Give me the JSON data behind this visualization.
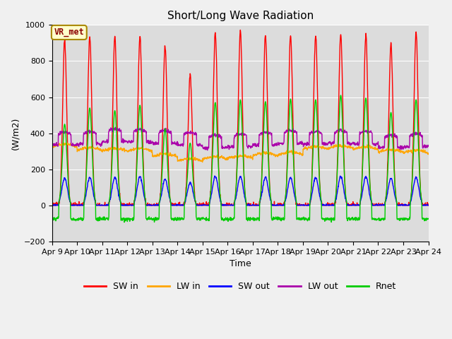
{
  "title": "Short/Long Wave Radiation",
  "ylabel": "(W/m2)",
  "xlabel": "Time",
  "ylim": [
    -200,
    1000
  ],
  "xlim": [
    0,
    15
  ],
  "annotation": "VR_met",
  "x_tick_labels": [
    "Apr 9",
    "Apr 10",
    "Apr 11",
    "Apr 12",
    "Apr 13",
    "Apr 14",
    "Apr 15",
    "Apr 16",
    "Apr 17",
    "Apr 18",
    "Apr 19",
    "Apr 20",
    "Apr 21",
    "Apr 22",
    "Apr 23",
    "Apr 24"
  ],
  "background_color": "#dcdcdc",
  "fig_background": "#f0f0f0",
  "series_colors": {
    "SW_in": "#ff0000",
    "LW_in": "#ffa500",
    "SW_out": "#0000ff",
    "LW_out": "#aa00aa",
    "Rnet": "#00cc00"
  },
  "legend_labels": [
    "SW in",
    "LW in",
    "SW out",
    "LW out",
    "Rnet"
  ],
  "title_fontsize": 11,
  "axis_fontsize": 9,
  "tick_fontsize": 8,
  "legend_fontsize": 9,
  "linewidth": 1.0
}
